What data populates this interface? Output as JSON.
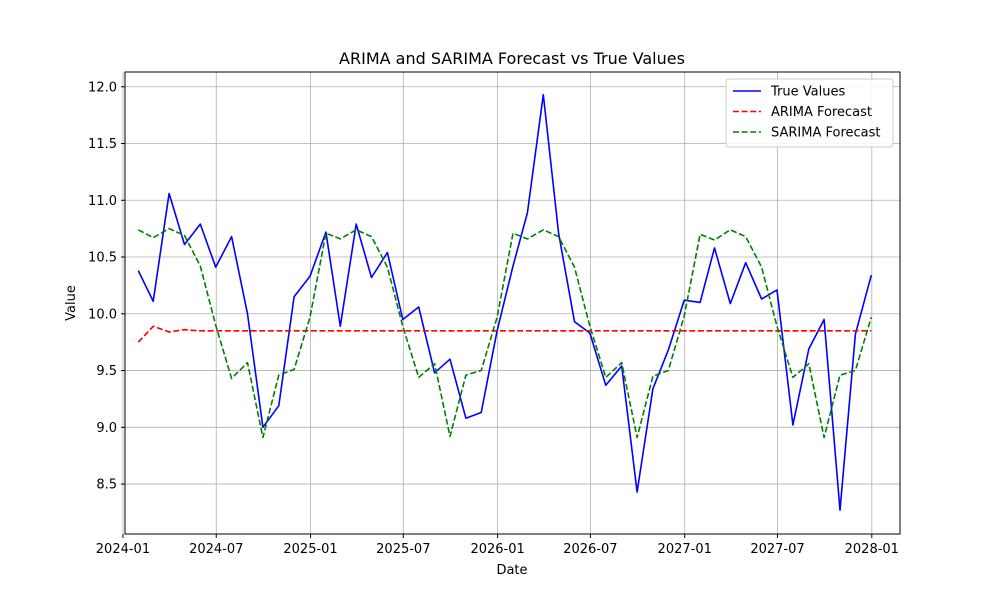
{
  "chart_data": {
    "type": "line",
    "title": "ARIMA and SARIMA Forecast vs True Values",
    "xlabel": "Date",
    "ylabel": "Value",
    "x": [
      "2024-01-31",
      "2024-02-29",
      "2024-03-31",
      "2024-04-30",
      "2024-05-31",
      "2024-06-30",
      "2024-07-31",
      "2024-08-31",
      "2024-09-30",
      "2024-10-31",
      "2024-11-30",
      "2024-12-31",
      "2025-01-31",
      "2025-02-28",
      "2025-03-31",
      "2025-04-30",
      "2025-05-31",
      "2025-06-30",
      "2025-07-31",
      "2025-08-31",
      "2025-09-30",
      "2025-10-31",
      "2025-11-30",
      "2025-12-31",
      "2026-01-31",
      "2026-02-28",
      "2026-03-31",
      "2026-04-30",
      "2026-05-31",
      "2026-06-30",
      "2026-07-31",
      "2026-08-31",
      "2026-09-30",
      "2026-10-31",
      "2026-11-30",
      "2026-12-31",
      "2027-01-31",
      "2027-02-28",
      "2027-03-31",
      "2027-04-30",
      "2027-05-31",
      "2027-06-30",
      "2027-07-31",
      "2027-08-31",
      "2027-09-30",
      "2027-10-31",
      "2027-11-30",
      "2027-12-31"
    ],
    "xticks": [
      "2024-01",
      "2024-07",
      "2025-01",
      "2025-07",
      "2026-01",
      "2026-07",
      "2027-01",
      "2027-07",
      "2028-01"
    ],
    "xlim": [
      "2024-01-05",
      "2028-02-25"
    ],
    "ylim": [
      8.06,
      12.13
    ],
    "yticks": [
      "8.5",
      "9.0",
      "9.5",
      "10.0",
      "10.5",
      "11.0",
      "11.5",
      "12.0"
    ],
    "grid": true,
    "legend_position": "top-right",
    "series": [
      {
        "name": "True Values",
        "color": "#0000ff",
        "style": "solid",
        "values": [
          10.38,
          10.11,
          11.06,
          10.61,
          10.79,
          10.41,
          10.68,
          10.0,
          9.0,
          9.19,
          10.15,
          10.33,
          10.72,
          9.89,
          10.79,
          10.32,
          10.54,
          9.95,
          10.06,
          9.48,
          9.6,
          9.08,
          9.13,
          9.85,
          10.42,
          10.89,
          11.93,
          10.71,
          9.93,
          9.83,
          9.37,
          9.54,
          8.43,
          9.34,
          9.68,
          10.12,
          10.1,
          10.58,
          10.09,
          10.45,
          10.13,
          10.21,
          9.02,
          9.69,
          9.95,
          8.27,
          9.82,
          10.34
        ]
      },
      {
        "name": "ARIMA Forecast",
        "color": "#ff0000",
        "style": "dashed",
        "values": [
          9.75,
          9.89,
          9.84,
          9.86,
          9.85,
          9.85,
          9.85,
          9.85,
          9.85,
          9.85,
          9.85,
          9.85,
          9.85,
          9.85,
          9.85,
          9.85,
          9.85,
          9.85,
          9.85,
          9.85,
          9.85,
          9.85,
          9.85,
          9.85,
          9.85,
          9.85,
          9.85,
          9.85,
          9.85,
          9.85,
          9.85,
          9.85,
          9.85,
          9.85,
          9.85,
          9.85,
          9.85,
          9.85,
          9.85,
          9.85,
          9.85,
          9.85,
          9.85,
          9.85,
          9.85,
          9.85,
          9.85,
          9.85
        ]
      },
      {
        "name": "SARIMA Forecast",
        "color": "#008000",
        "style": "dashed",
        "values": [
          10.74,
          10.67,
          10.75,
          10.69,
          10.42,
          9.9,
          9.43,
          9.57,
          8.91,
          9.46,
          9.51,
          9.97,
          10.71,
          10.66,
          10.74,
          10.68,
          10.41,
          9.89,
          9.44,
          9.56,
          8.92,
          9.46,
          9.5,
          9.97,
          10.71,
          10.66,
          10.74,
          10.68,
          10.41,
          9.89,
          9.44,
          9.57,
          8.91,
          9.45,
          9.5,
          9.98,
          10.7,
          10.65,
          10.74,
          10.68,
          10.41,
          9.89,
          9.44,
          9.56,
          8.91,
          9.46,
          9.5,
          9.97
        ]
      }
    ]
  }
}
